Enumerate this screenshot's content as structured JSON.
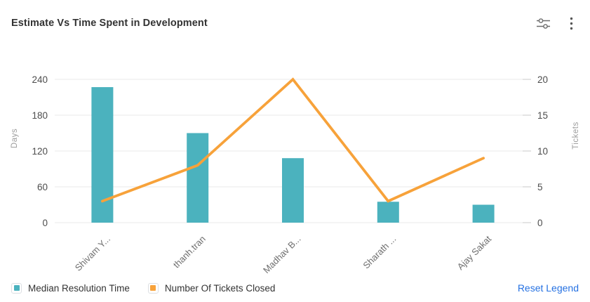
{
  "header": {
    "title": "Estimate Vs Time Spent in Development",
    "icons": [
      {
        "name": "filter-sliders-icon"
      },
      {
        "name": "kebab-menu-icon"
      }
    ]
  },
  "legend": {
    "items": [
      {
        "label": "Median Resolution Time",
        "color": "#4BB2BE"
      },
      {
        "label": "Number Of Tickets Closed",
        "color": "#F7A23A"
      }
    ],
    "reset_label": "Reset Legend"
  },
  "colors": {
    "bar": "#4BB2BE",
    "line": "#F7A23A",
    "gridline": "#ededed",
    "tick_stub": "#d8d8d8",
    "tick_text": "#4d4d4d",
    "category_text": "#6f6f6f",
    "axis_title_text": "#9c9c9c",
    "reset_link": "#2571E2",
    "icon_gray": "#6b6b6b"
  },
  "chart_data": {
    "type": "combo-bar-line",
    "title": "Estimate Vs Time Spent in Development",
    "categories": [
      "Shivam Y...",
      "thanh.tran",
      "Madhav B...",
      "Sharath ...",
      "Ajay Sakat"
    ],
    "series": [
      {
        "name": "Median Resolution Time",
        "type": "bar",
        "axis": "left",
        "color": "#4BB2BE",
        "values": [
          227,
          150,
          108,
          35,
          30
        ]
      },
      {
        "name": "Number Of Tickets Closed",
        "type": "line",
        "axis": "right",
        "color": "#F7A23A",
        "values": [
          3,
          8,
          20,
          3,
          9
        ]
      }
    ],
    "left_axis": {
      "label": "Days",
      "range": [
        0,
        240
      ],
      "ticks": [
        0,
        60,
        120,
        180,
        240
      ]
    },
    "right_axis": {
      "label": "Tickets",
      "range": [
        0,
        20
      ],
      "ticks": [
        0,
        5,
        10,
        15,
        20
      ]
    },
    "grid": true,
    "legend_position": "bottom"
  }
}
